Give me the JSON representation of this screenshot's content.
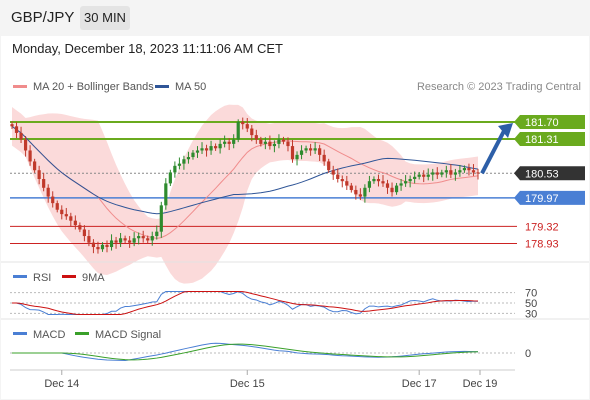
{
  "header": {
    "symbol": "GBP/JPY",
    "timeframe": "30 MIN",
    "datetime": "Monday, December 18, 2023 11:11:06 AM CET"
  },
  "legend": {
    "ma20": {
      "label": "MA 20 + Bollinger Bands",
      "color": "#f08c8c"
    },
    "ma50": {
      "label": "MA 50",
      "color": "#2f5597"
    },
    "credit": "Research © 2023 Trading Central"
  },
  "colors": {
    "up": "#2e8b2e",
    "down": "#c0392b",
    "band": "#fbdada",
    "resistance": "#6aaa1e",
    "pivot": "#4a7fd4",
    "support": "#cc2222",
    "current": "#333333",
    "forecast": "#2d5fa8"
  },
  "chart_data": [
    {
      "type": "candlestick",
      "x_ticks": [
        "Dec 14",
        "Dec 15",
        "Dec 17",
        "Dec 19"
      ],
      "ylim": [
        178.6,
        182.2
      ],
      "levels": [
        {
          "value": 181.7,
          "label": "181.70",
          "kind": "resistance"
        },
        {
          "value": 181.31,
          "label": "181.31",
          "kind": "resistance"
        },
        {
          "value": 180.53,
          "label": "180.53",
          "kind": "current"
        },
        {
          "value": 179.97,
          "label": "179.97",
          "kind": "pivot"
        },
        {
          "value": 179.32,
          "label": "179.32",
          "kind": "support"
        },
        {
          "value": 178.93,
          "label": "178.93",
          "kind": "support"
        }
      ],
      "series": [
        {
          "name": "MA 20 + Bollinger Bands"
        },
        {
          "name": "MA 50"
        }
      ],
      "close": [
        181.6,
        181.45,
        181.3,
        181.05,
        180.8,
        180.6,
        180.4,
        180.2,
        180.0,
        179.85,
        179.7,
        179.6,
        179.55,
        179.45,
        179.35,
        179.25,
        179.1,
        178.95,
        178.85,
        178.8,
        178.9,
        178.85,
        179.0,
        178.95,
        179.05,
        179.0,
        178.95,
        179.05,
        179.1,
        179.05,
        179.0,
        179.1,
        179.2,
        179.8,
        180.3,
        180.55,
        180.7,
        180.75,
        180.85,
        180.9,
        181.0,
        181.05,
        181.1,
        181.05,
        181.15,
        181.1,
        181.2,
        181.25,
        181.2,
        181.3,
        181.7,
        181.65,
        181.55,
        181.4,
        181.3,
        181.2,
        181.25,
        181.15,
        181.2,
        181.3,
        181.25,
        181.15,
        180.85,
        180.95,
        181.05,
        181.1,
        181.05,
        181.1,
        180.95,
        180.8,
        180.6,
        180.5,
        180.4,
        180.35,
        180.25,
        180.15,
        180.05,
        180.0,
        180.2,
        180.35,
        180.4,
        180.35,
        180.3,
        180.2,
        180.1,
        180.25,
        180.3,
        180.35,
        180.4,
        180.45,
        180.5,
        180.45,
        180.5,
        180.55,
        180.5,
        180.55,
        180.6,
        180.5,
        180.55,
        180.6,
        180.65,
        180.6,
        180.55,
        180.53
      ]
    },
    {
      "type": "line",
      "name": "RSI",
      "series": [
        {
          "name": "RSI"
        },
        {
          "name": "9MA"
        }
      ],
      "levels": [
        {
          "value": 70,
          "label": "70"
        },
        {
          "value": 50,
          "label": "50"
        },
        {
          "value": 30,
          "label": "30"
        }
      ],
      "legend": {
        "rsi": {
          "label": "RSI",
          "color": "#4a7fd4"
        },
        "ma9": {
          "label": "9MA",
          "color": "#cc1111"
        }
      }
    },
    {
      "type": "line",
      "name": "MACD",
      "series": [
        {
          "name": "MACD"
        },
        {
          "name": "MACD Signal"
        }
      ],
      "levels": [
        {
          "value": 0,
          "label": "0"
        }
      ],
      "legend": {
        "macd": {
          "label": "MACD",
          "color": "#4a7fd4"
        },
        "signal": {
          "label": "MACD Signal",
          "color": "#3aa02a"
        }
      }
    }
  ]
}
